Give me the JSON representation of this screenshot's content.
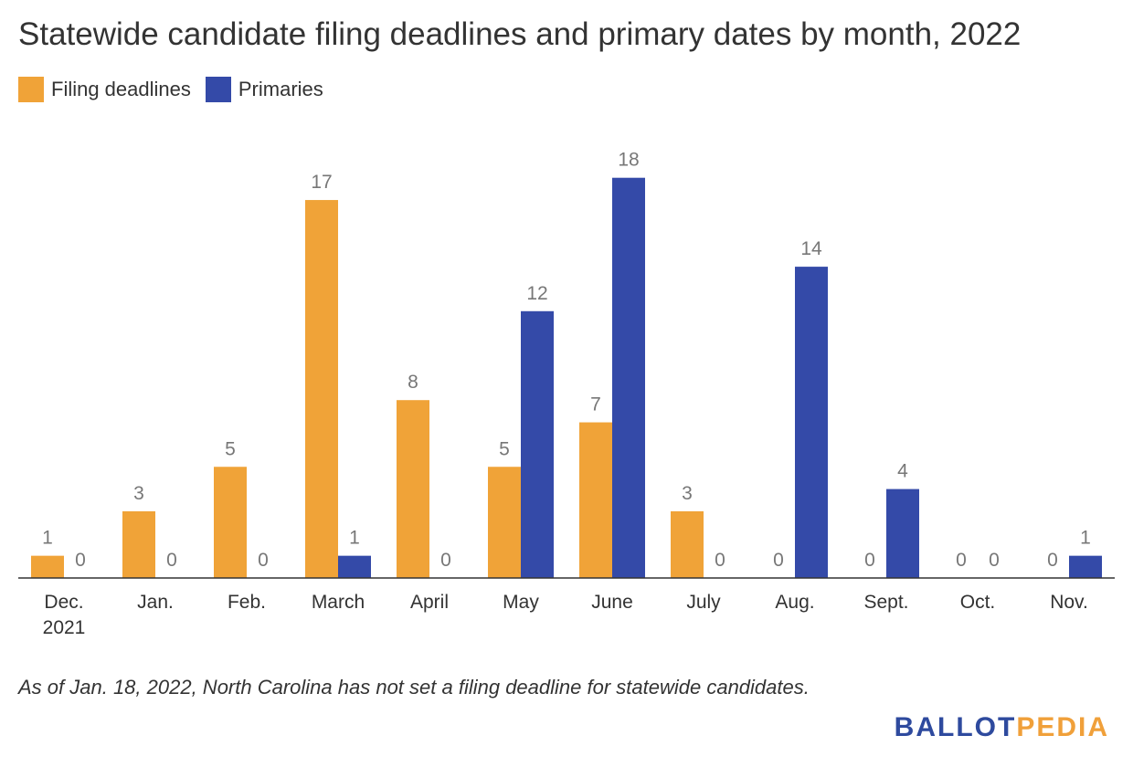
{
  "header": {
    "title": "Statewide candidate filing deadlines and primary dates by month, 2022"
  },
  "footer": {
    "note": "As of Jan. 18, 2022, North Carolina has not set a filing deadline for statewide candidates.",
    "brand_part1": "BALLOT",
    "brand_part2": "PEDIA"
  },
  "colors": {
    "filing": "#f0a338",
    "primaries": "#344aa8",
    "value_label": "#777777",
    "tick_label": "#333333",
    "axis": "#333333"
  },
  "chart_data": {
    "type": "bar",
    "title": "Statewide candidate filing deadlines and primary dates by month, 2022",
    "xlabel": "",
    "ylabel": "",
    "ylim": [
      0,
      18
    ],
    "grid": false,
    "legend_position": "top-left",
    "categories": [
      [
        "Dec.",
        "2021"
      ],
      [
        "Jan."
      ],
      [
        "Feb."
      ],
      [
        "March"
      ],
      [
        "April"
      ],
      [
        "May"
      ],
      [
        "June"
      ],
      [
        "July"
      ],
      [
        "Aug."
      ],
      [
        "Sept."
      ],
      [
        "Oct."
      ],
      [
        "Nov."
      ]
    ],
    "series": [
      {
        "name": "Filing deadlines",
        "values": [
          1,
          3,
          5,
          17,
          8,
          5,
          7,
          3,
          0,
          0,
          0,
          0
        ]
      },
      {
        "name": "Primaries",
        "values": [
          0,
          0,
          0,
          1,
          0,
          12,
          18,
          0,
          14,
          4,
          0,
          1
        ]
      }
    ]
  }
}
